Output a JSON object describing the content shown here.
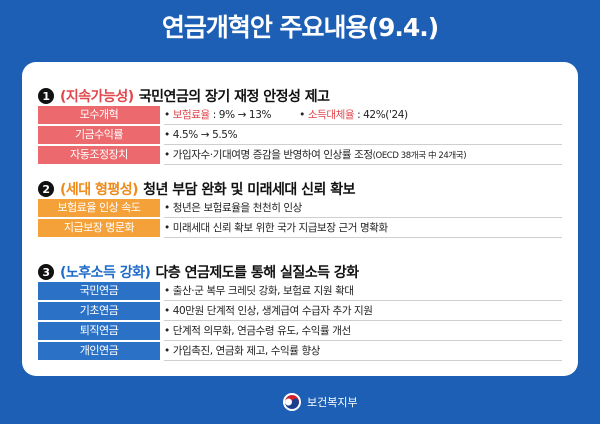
{
  "title": "연금개혁안 주요내용(9.4.)",
  "sections": [
    {
      "number": "1",
      "tag": "(지속가능성)",
      "heading": "국민연금의 장기 재정 안정성 제고",
      "rows": [
        {
          "label": "모수개혁",
          "items": [
            {
              "key": "보험료율",
              "text": " : 9% → 13%"
            },
            {
              "key": "소득대체율",
              "text": " : 42%('24)"
            }
          ]
        },
        {
          "label": "기금수익률",
          "items": [
            {
              "text": "4.5% → 5.5%"
            }
          ]
        },
        {
          "label": "자동조정장치",
          "items": [
            {
              "text": "가입자수·기대여명 증감을 반영하여 인상률 조정",
              "note": "(OECD 38개국 中 24개국)"
            }
          ]
        }
      ]
    },
    {
      "number": "2",
      "tag": "(세대 형평성)",
      "heading": "청년 부담 완화 및 미래세대 신뢰 확보",
      "rows": [
        {
          "label": "보험료율 인상 속도",
          "items": [
            {
              "text": "청년은 보험료율을 천천히 인상"
            }
          ]
        },
        {
          "label": "지급보장 명문화",
          "items": [
            {
              "text": "미래세대 신뢰 확보 위한 국가 지급보장 근거 명확화"
            }
          ]
        }
      ]
    },
    {
      "number": "3",
      "tag": "(노후소득 강화)",
      "heading": "다층 연금제도를 통해 실질소득 강화",
      "rows": [
        {
          "label": "국민연금",
          "items": [
            {
              "text": "출산·군 복무 크레딧 강화, 보험료 지원 확대"
            }
          ]
        },
        {
          "label": "기초연금",
          "items": [
            {
              "text": "40만원 단계적 인상, 생계급여 수급자 추가 지원"
            }
          ]
        },
        {
          "label": "퇴직연금",
          "items": [
            {
              "text": "단계적 의무화, 연금수령 유도, 수익률 개선"
            }
          ]
        },
        {
          "label": "개인연금",
          "items": [
            {
              "text": "가입촉진, 연금화 제고, 수익률 향상"
            }
          ]
        }
      ]
    }
  ],
  "footer": "보건복지부"
}
